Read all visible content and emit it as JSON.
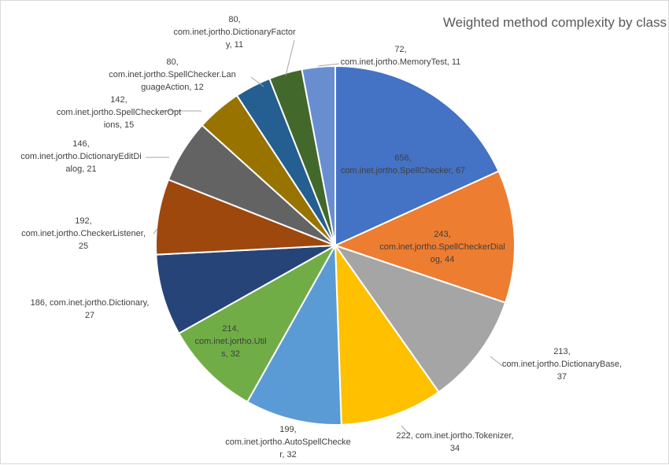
{
  "chart_data": {
    "type": "pie",
    "title": "Weighted method complexity by class",
    "slices": [
      {
        "category": "656, com.inet.jortho.SpellChecker",
        "value": 67,
        "color": "#4472C4"
      },
      {
        "category": "243, com.inet.jortho.SpellCheckerDialog",
        "value": 44,
        "color": "#ED7D31"
      },
      {
        "category": "213, com.inet.jortho.DictionaryBase",
        "value": 37,
        "color": "#A5A5A5"
      },
      {
        "category": "222, com.inet.jortho.Tokenizer",
        "value": 34,
        "color": "#FFC000"
      },
      {
        "category": "199, com.inet.jortho.AutoSpellChecker",
        "value": 32,
        "color": "#5B9BD5"
      },
      {
        "category": "214, com.inet.jortho.Utils",
        "value": 32,
        "color": "#70AD47"
      },
      {
        "category": "186, com.inet.jortho.Dictionary",
        "value": 27,
        "color": "#264478"
      },
      {
        "category": "192, com.inet.jortho.CheckerListener",
        "value": 25,
        "color": "#9E480E"
      },
      {
        "category": "146, com.inet.jortho.DictionaryEditDialog",
        "value": 21,
        "color": "#636363"
      },
      {
        "category": "142, com.inet.jortho.SpellCheckerOptions",
        "value": 15,
        "color": "#997300"
      },
      {
        "category": "80, com.inet.jortho.SpellChecker.LanguageAction",
        "value": 12,
        "color": "#255E91"
      },
      {
        "category": "80, com.inet.jortho.DictionaryFactory",
        "value": 11,
        "color": "#43682B"
      },
      {
        "category": "72, com.inet.jortho.MemoryTest",
        "value": 11,
        "color": "#698ED0"
      }
    ],
    "data_labels": [
      [
        "656,",
        "com.inet.jortho.SpellChecker, 67"
      ],
      [
        "243,",
        "com.inet.jortho.SpellCheckerDial",
        "og, 44"
      ],
      [
        "213,",
        "com.inet.jortho.DictionaryBase,",
        "37"
      ],
      [
        "222, com.inet.jortho.Tokenizer,",
        "34"
      ],
      [
        "199,",
        "com.inet.jortho.AutoSpellChecke",
        "r, 32"
      ],
      [
        "214,",
        "com.inet.jortho.Util",
        "s, 32"
      ],
      [
        "186, com.inet.jortho.Dictionary,",
        "27"
      ],
      [
        "192,",
        "com.inet.jortho.CheckerListener,",
        "25"
      ],
      [
        "146,",
        "com.inet.jortho.DictionaryEditDi",
        "alog, 21"
      ],
      [
        "142,",
        "com.inet.jortho.SpellCheckerOpt",
        "ions, 15"
      ],
      [
        "80,",
        "com.inet.jortho.SpellChecker.Lan",
        "guageAction, 12"
      ],
      [
        "80,",
        "com.inet.jortho.DictionaryFactor",
        "y, 11"
      ],
      [
        "72,",
        "com.inet.jortho.MemoryTest, 11"
      ]
    ],
    "legend": "none",
    "start_angle_deg": 0,
    "direction": "clockwise"
  }
}
